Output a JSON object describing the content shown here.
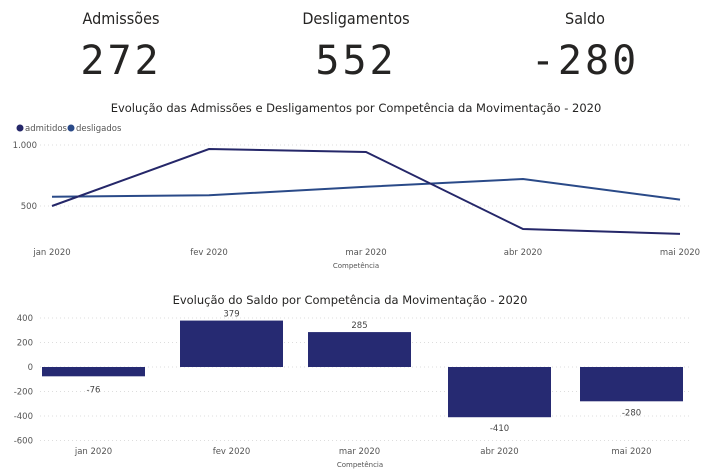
{
  "kpis": [
    {
      "label": "Admissões",
      "value": "272"
    },
    {
      "label": "Desligamentos",
      "value": "552"
    },
    {
      "label": "Saldo",
      "value": "-280"
    }
  ],
  "colors": {
    "admitidos": "#252769",
    "desligados": "#2a4a88",
    "bar": "#262a72"
  },
  "chart_data": [
    {
      "type": "line",
      "title": "Evolução das Admissões e Desligamentos por Competência da Movimentação - 2020",
      "xlabel": "Competência",
      "ylabel": "",
      "categories": [
        "jan 2020",
        "fev 2020",
        "mar 2020",
        "abr 2020",
        "mai 2020"
      ],
      "series": [
        {
          "name": "admitidos",
          "values": [
            500,
            967,
            943,
            311,
            272
          ]
        },
        {
          "name": "desligados",
          "values": [
            576,
            588,
            658,
            721,
            552
          ]
        }
      ],
      "yticks": [
        {
          "v": 500,
          "label": "500"
        },
        {
          "v": 1000,
          "label": "1.000"
        }
      ],
      "ylim": [
        225,
        1030
      ],
      "legend": "top-left",
      "grid": true
    },
    {
      "type": "bar",
      "title": "Evolução do Saldo por Competência da Movimentação - 2020",
      "xlabel": "Competência",
      "ylabel": "",
      "categories": [
        "jan 2020",
        "fev 2020",
        "mar 2020",
        "abr 2020",
        "mai 2020"
      ],
      "values": [
        -76,
        379,
        285,
        -410,
        -280
      ],
      "yticks": [
        {
          "v": 400,
          "label": "400"
        },
        {
          "v": 200,
          "label": "200"
        },
        {
          "v": 0,
          "label": "0"
        },
        {
          "v": -200,
          "label": "-200"
        },
        {
          "v": -400,
          "label": "-400"
        },
        {
          "v": -600,
          "label": "-600"
        }
      ],
      "ylim": [
        -600,
        400
      ],
      "grid": true
    }
  ]
}
